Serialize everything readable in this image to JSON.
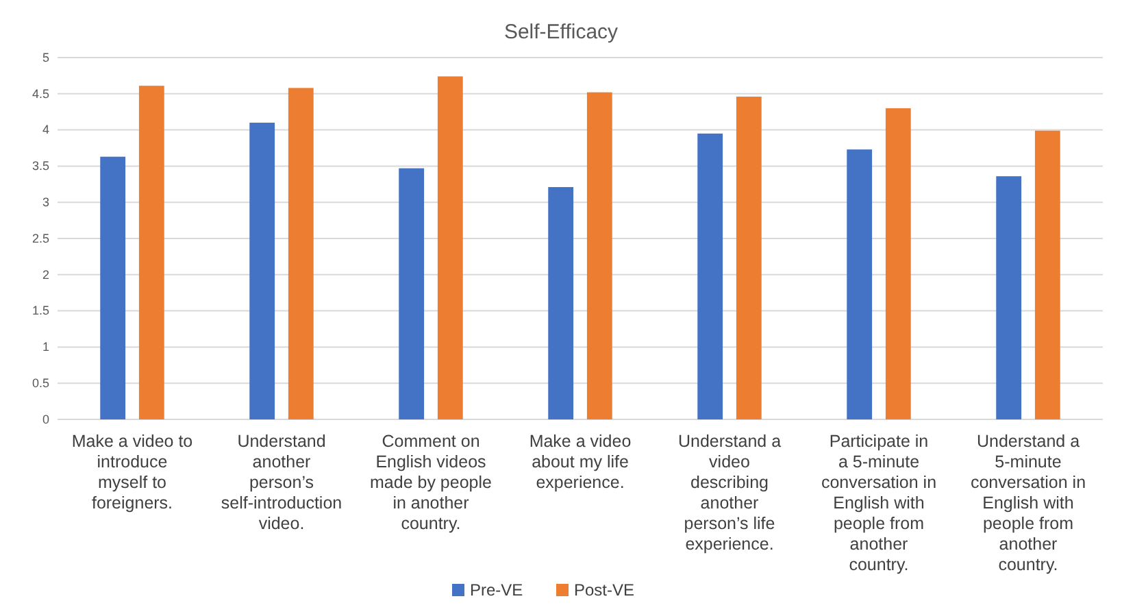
{
  "chart_data": {
    "type": "bar",
    "title": "Self-Efficacy",
    "categories": [
      "Make a video to introduce myself to foreigners.",
      "Understand another person’s self-introduction video.",
      "Comment on English videos made by people in another country.",
      "Make a video about my life experience.",
      "Understand a video describing another person’s life experience.",
      "Participate in a 5-minute conversation in English with people from another country.",
      "Understand a 5-minute conversation in English with people from another country."
    ],
    "series": [
      {
        "name": "Pre-VE",
        "color": "#4472c4",
        "values": [
          3.63,
          4.1,
          3.47,
          3.21,
          3.95,
          3.73,
          3.36
        ]
      },
      {
        "name": "Post-VE",
        "color": "#ed7d31",
        "values": [
          4.61,
          4.58,
          4.74,
          4.52,
          4.46,
          4.3,
          3.99
        ]
      }
    ],
    "ylim": [
      0,
      5
    ],
    "yticks": [
      0,
      0.5,
      1,
      1.5,
      2,
      2.5,
      3,
      3.5,
      4,
      4.5,
      5
    ],
    "grid": "y",
    "legend": "bottom"
  }
}
